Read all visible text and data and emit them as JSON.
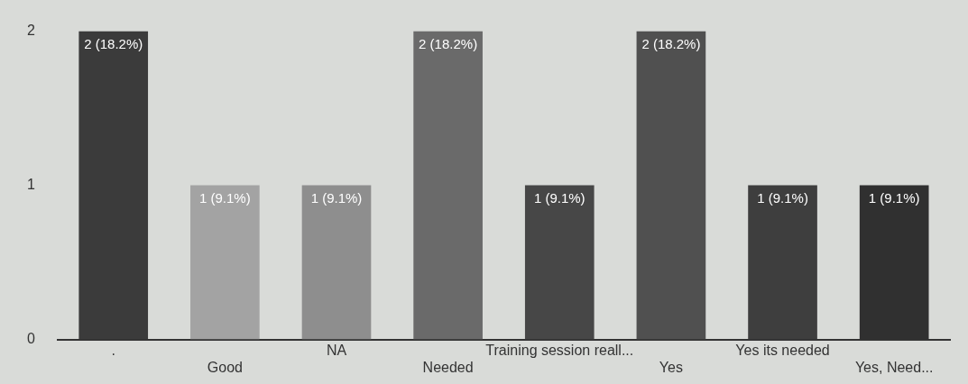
{
  "chart_data": {
    "type": "bar",
    "categories": [
      ".",
      "Good",
      "NA",
      "Needed",
      "Training session reall...",
      "Yes",
      "Yes its needed",
      "Yes, Need..."
    ],
    "values": [
      2,
      1,
      1,
      2,
      1,
      2,
      1,
      1
    ],
    "colors": [
      "#3b3b3b",
      "#a3a3a3",
      "#8e8e8e",
      "#6a6a6a",
      "#474747",
      "#505050",
      "#3e3e3e",
      "#303030"
    ],
    "value_labels": [
      "2 (18.2%)",
      "1 (9.1%)",
      "1 (9.1%)",
      "2 (18.2%)",
      "1 (9.1%)",
      "2 (18.2%)",
      "1 (9.1%)",
      "1 (9.1%)"
    ],
    "ylim": [
      0,
      2
    ],
    "yticks": [
      0,
      1,
      2
    ],
    "grid": false,
    "legend": false
  }
}
